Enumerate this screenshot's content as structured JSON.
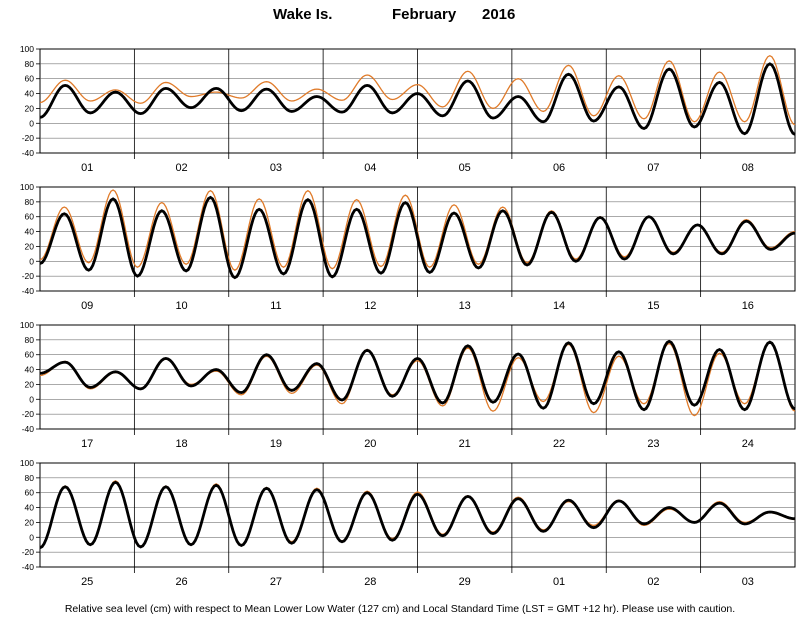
{
  "title": {
    "station": "Wake Is.",
    "month": "February",
    "year": "2016"
  },
  "footer_note": "Relative sea level (cm) with respect to Mean Lower Low Water (127 cm) and Local Standard Time (LST = GMT +12 hr). Please use with caution.",
  "colors": {
    "predicted": "#000000",
    "observed": "#e07b2a",
    "grid": "#000000"
  },
  "chart_data": {
    "type": "line",
    "ylim": [
      -40,
      100
    ],
    "yticks": [
      -40,
      -20,
      0,
      20,
      40,
      60,
      80,
      100
    ],
    "grid": true,
    "series_names": [
      "predicted",
      "observed"
    ],
    "panels": [
      {
        "days": [
          "01",
          "02",
          "03",
          "04",
          "05",
          "06",
          "07",
          "08"
        ],
        "predicted": {
          "highs": [
            51,
            42,
            47,
            47,
            46,
            36,
            51,
            40,
            57,
            36,
            66,
            49,
            73,
            55,
            80
          ],
          "lows": [
            8,
            14,
            13,
            21,
            17,
            16,
            15,
            14,
            10,
            7,
            2,
            3,
            -7,
            -5,
            -14,
            -15
          ]
        },
        "observed": {
          "highs": [
            58,
            45,
            55,
            42,
            56,
            46,
            65,
            52,
            70,
            60,
            78,
            64,
            84,
            69,
            91
          ],
          "lows": [
            28,
            30,
            27,
            36,
            34,
            30,
            31,
            32,
            22,
            20,
            16,
            10,
            6,
            2,
            2,
            -2
          ]
        }
      },
      {
        "days": [
          "09",
          "10",
          "11",
          "12",
          "13",
          "14",
          "15",
          "16"
        ],
        "predicted": {
          "highs": [
            64,
            84,
            68,
            86,
            70,
            83,
            70,
            79,
            65,
            68,
            66,
            59,
            60,
            49,
            54,
            38
          ],
          "lows": [
            -3,
            -12,
            -20,
            -13,
            -22,
            -17,
            -21,
            -16,
            -15,
            -9,
            -5,
            0,
            3,
            10,
            10,
            16
          ]
        },
        "observed": {
          "highs": [
            73,
            96,
            79,
            95,
            84,
            95,
            83,
            89,
            76,
            73,
            68,
            60,
            60,
            49,
            56,
            40
          ],
          "lows": [
            2,
            -2,
            -8,
            -4,
            -12,
            -8,
            -10,
            -7,
            -8,
            -4,
            -2,
            3,
            6,
            12,
            12,
            18
          ]
        }
      },
      {
        "days": [
          "17",
          "18",
          "19",
          "20",
          "21",
          "22",
          "23",
          "24"
        ],
        "predicted": {
          "highs": [
            50,
            37,
            55,
            40,
            60,
            48,
            66,
            55,
            72,
            61,
            76,
            64,
            78,
            67,
            77
          ],
          "lows": [
            35,
            16,
            14,
            18,
            9,
            12,
            -1,
            4,
            -5,
            -4,
            -12,
            -6,
            -14,
            -8,
            -14,
            -13
          ]
        },
        "observed": {
          "highs": [
            51,
            36,
            54,
            38,
            58,
            46,
            67,
            52,
            69,
            56,
            74,
            58,
            75,
            62,
            76
          ],
          "lows": [
            32,
            14,
            15,
            20,
            6,
            8,
            -6,
            6,
            -9,
            -16,
            -3,
            -18,
            -6,
            -22,
            -6,
            -16
          ]
        }
      },
      {
        "days": [
          "25",
          "26",
          "27",
          "28",
          "29",
          "01",
          "02",
          "03"
        ],
        "predicted": {
          "highs": [
            68,
            74,
            68,
            70,
            66,
            64,
            60,
            58,
            55,
            52,
            50,
            49,
            40,
            46,
            34
          ],
          "lows": [
            -14,
            -10,
            -13,
            -10,
            -11,
            -8,
            -6,
            -4,
            2,
            5,
            8,
            13,
            18,
            20,
            18,
            25
          ]
        },
        "observed": {
          "highs": [
            69,
            76,
            69,
            72,
            67,
            66,
            62,
            61,
            56,
            54,
            48,
            50,
            38,
            48,
            33
          ],
          "lows": [
            -13,
            -9,
            -12,
            -9,
            -10,
            -6,
            -5,
            -2,
            4,
            7,
            10,
            16,
            16,
            21,
            20,
            24
          ]
        }
      }
    ]
  }
}
